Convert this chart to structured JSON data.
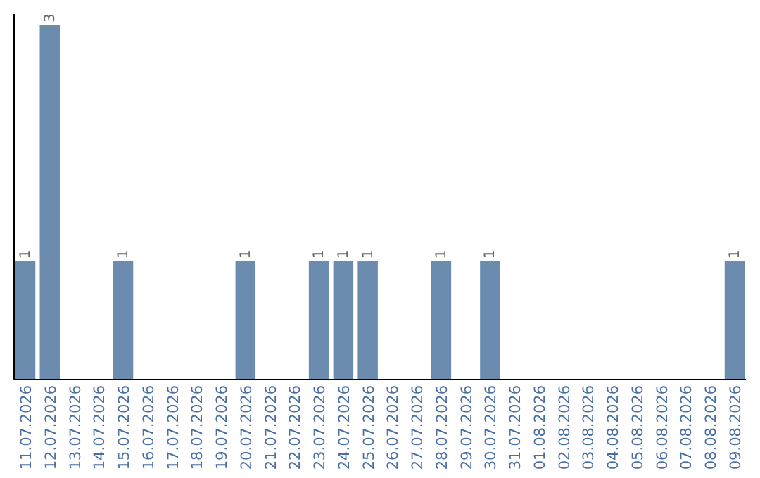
{
  "chart_data": {
    "type": "bar",
    "categories": [
      "11.07.2026",
      "12.07.2026",
      "13.07.2026",
      "14.07.2026",
      "15.07.2026",
      "16.07.2026",
      "17.07.2026",
      "18.07.2026",
      "19.07.2026",
      "20.07.2026",
      "21.07.2026",
      "22.07.2026",
      "23.07.2026",
      "24.07.2026",
      "25.07.2026",
      "26.07.2026",
      "27.07.2026",
      "28.07.2026",
      "29.07.2026",
      "30.07.2026",
      "31.07.2026",
      "01.08.2026",
      "02.08.2026",
      "03.08.2026",
      "04.08.2026",
      "05.08.2026",
      "06.08.2026",
      "07.08.2026",
      "08.08.2026",
      "09.08.2026"
    ],
    "values": [
      1,
      3,
      null,
      null,
      1,
      null,
      null,
      null,
      null,
      1,
      null,
      null,
      1,
      1,
      1,
      null,
      null,
      1,
      null,
      1,
      null,
      null,
      null,
      null,
      null,
      null,
      null,
      null,
      null,
      1
    ],
    "color": "#6b8caf",
    "data_labels": true
  }
}
